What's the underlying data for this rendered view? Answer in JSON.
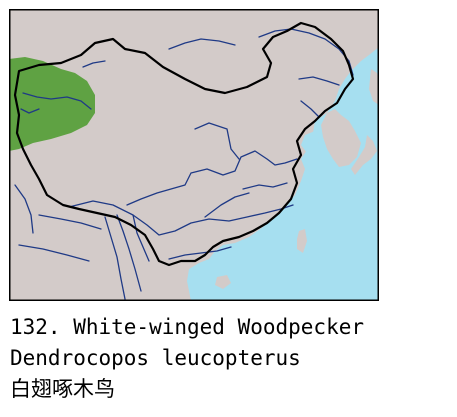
{
  "map": {
    "colors": {
      "sea": "#a6dff0",
      "land": "#d3cbc9",
      "range": "#5fa243",
      "rivers": "#1f3a86",
      "border": "#000000",
      "frame": "#000000"
    },
    "range_label": "White-winged Woodpecker breeding range"
  },
  "caption": {
    "line1": "132. White-winged Woodpecker",
    "line2": "Dendrocopos leucopterus",
    "line3": "白翅啄木鸟"
  }
}
